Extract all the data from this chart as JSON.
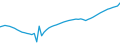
{
  "y_values": [
    32,
    35,
    38,
    36,
    34,
    30,
    26,
    20,
    15,
    10,
    8,
    5,
    3,
    0,
    5,
    -30,
    35,
    -5,
    10,
    20,
    28,
    33,
    37,
    40,
    44,
    48,
    52,
    55,
    58,
    60,
    62,
    64,
    63,
    65,
    62,
    58,
    63,
    67,
    72,
    78,
    84,
    90,
    95,
    100,
    105,
    108,
    112,
    115,
    118,
    130
  ],
  "line_color": "#1b9fd5",
  "line_width": 0.9,
  "background_color": "#ffffff"
}
